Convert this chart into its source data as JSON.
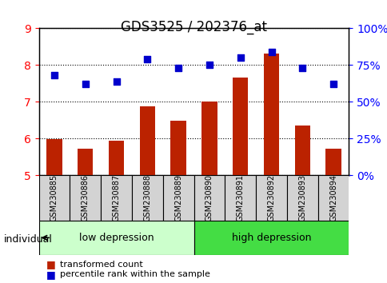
{
  "title": "GDS3525 / 202376_at",
  "samples": [
    "GSM230885",
    "GSM230886",
    "GSM230887",
    "GSM230888",
    "GSM230889",
    "GSM230890",
    "GSM230891",
    "GSM230892",
    "GSM230893",
    "GSM230894"
  ],
  "bar_values": [
    5.98,
    5.73,
    5.95,
    6.87,
    6.48,
    7.02,
    7.67,
    8.32,
    6.35,
    5.73
  ],
  "dot_values_pct": [
    68,
    62,
    64,
    79,
    73,
    75,
    80,
    84,
    73,
    62
  ],
  "ylim_left": [
    5,
    9
  ],
  "ylim_right": [
    0,
    100
  ],
  "yticks_left": [
    5,
    6,
    7,
    8,
    9
  ],
  "yticks_right": [
    0,
    25,
    50,
    75,
    100
  ],
  "ytick_labels_right": [
    "0%",
    "25%",
    "50%",
    "75%",
    "100%"
  ],
  "bar_color": "#bb2200",
  "dot_color": "#0000cc",
  "group1_label": "low depression",
  "group2_label": "high depression",
  "group1_color": "#ccffcc",
  "group2_color": "#44dd44",
  "group1_indices": [
    0,
    1,
    2,
    3,
    4
  ],
  "group2_indices": [
    5,
    6,
    7,
    8,
    9
  ],
  "legend_bar_label": "transformed count",
  "legend_dot_label": "percentile rank within the sample",
  "individual_label": "individual",
  "grid_linestyle": "dotted",
  "bar_bottom": 5.0,
  "xticklabel_gray": "#d0d0d0",
  "xlabel_box_color": "#d3d3d3"
}
